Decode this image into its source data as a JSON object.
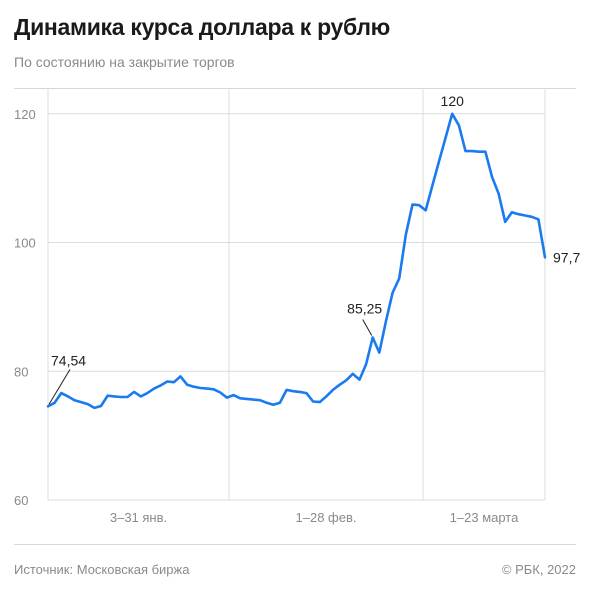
{
  "header": {
    "title": "Динамика курса доллара к рублю",
    "subtitle": "По состоянию на закрытие торгов"
  },
  "footer": {
    "source": "Источник: Московская биржа",
    "copyright": "© РБК, 2022"
  },
  "colors": {
    "line": "#1a7bf0",
    "grid": "#dcdcdc",
    "tick_text": "#8a8a8a",
    "annotation_text": "#222222"
  },
  "chart_data": {
    "type": "line",
    "title": "Динамика курса доллара к рублю",
    "ylim": [
      60,
      124
    ],
    "y_ticks": [
      60,
      80,
      100,
      120
    ],
    "y_tick_labels": [
      "60",
      "80",
      "100",
      "120"
    ],
    "periods": [
      "3–31 янв.",
      "1–28 фев.",
      "1–23 марта"
    ],
    "grid": true,
    "series": [
      {
        "values": [
          74.54,
          75.1,
          76.6,
          76.1,
          75.5,
          75.2,
          74.9,
          74.3,
          74.6,
          76.2,
          76.1,
          76.0,
          76.0,
          76.8,
          76.1,
          76.6,
          77.3,
          77.8,
          78.4,
          78.3,
          79.2,
          77.9,
          77.6,
          77.4,
          77.3,
          77.2,
          76.7,
          75.9,
          76.3,
          75.8,
          75.7,
          75.6,
          75.5,
          75.1,
          74.8,
          75.1,
          77.1,
          76.9,
          76.8,
          76.6,
          75.3,
          75.2,
          76.1,
          77.1,
          77.9,
          78.6,
          79.6,
          78.7,
          81.1,
          85.25,
          82.9,
          87.8,
          92.2,
          94.4,
          101.2,
          105.9,
          105.8,
          105.0,
          108.8,
          112.6,
          116.3,
          120.0,
          118.2,
          114.2,
          114.2,
          114.1,
          114.1,
          110.2,
          107.6,
          103.2,
          104.7,
          104.4,
          104.2,
          104.0,
          103.6,
          97.7
        ]
      }
    ],
    "annotations": [
      {
        "label": "74,54",
        "index": 0
      },
      {
        "label": "85,25",
        "index": 49
      },
      {
        "label": "120",
        "index": 61
      },
      {
        "label": "97,7",
        "index": 75
      }
    ]
  }
}
